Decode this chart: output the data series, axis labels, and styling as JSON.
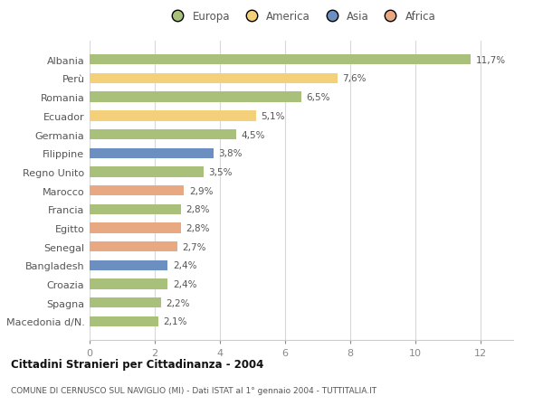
{
  "categories": [
    "Macedonia d/N.",
    "Spagna",
    "Croazia",
    "Bangladesh",
    "Senegal",
    "Egitto",
    "Francia",
    "Marocco",
    "Regno Unito",
    "Filippine",
    "Germania",
    "Ecuador",
    "Romania",
    "Perù",
    "Albania"
  ],
  "values": [
    2.1,
    2.2,
    2.4,
    2.4,
    2.7,
    2.8,
    2.8,
    2.9,
    3.5,
    3.8,
    4.5,
    5.1,
    6.5,
    7.6,
    11.7
  ],
  "labels": [
    "2,1%",
    "2,2%",
    "2,4%",
    "2,4%",
    "2,7%",
    "2,8%",
    "2,8%",
    "2,9%",
    "3,5%",
    "3,8%",
    "4,5%",
    "5,1%",
    "6,5%",
    "7,6%",
    "11,7%"
  ],
  "colors": [
    "#a8c07a",
    "#a8c07a",
    "#a8c07a",
    "#6b8fc0",
    "#e8a882",
    "#e8a882",
    "#a8c07a",
    "#e8a882",
    "#a8c07a",
    "#6b8fc0",
    "#a8c07a",
    "#f5d07a",
    "#a8c07a",
    "#f5d07a",
    "#a8c07a"
  ],
  "legend_labels": [
    "Europa",
    "America",
    "Asia",
    "Africa"
  ],
  "legend_colors": [
    "#a8c07a",
    "#f5d07a",
    "#6b8fc0",
    "#e8a882"
  ],
  "title_bold": "Cittadini Stranieri per Cittadinanza - 2004",
  "subtitle": "COMUNE DI CERNUSCO SUL NAVIGLIO (MI) - Dati ISTAT al 1° gennaio 2004 - TUTTITALIA.IT",
  "xlim": [
    0,
    13
  ],
  "xticks": [
    0,
    2,
    4,
    6,
    8,
    10,
    12
  ],
  "background_color": "#ffffff",
  "grid_color": "#d8d8d8"
}
